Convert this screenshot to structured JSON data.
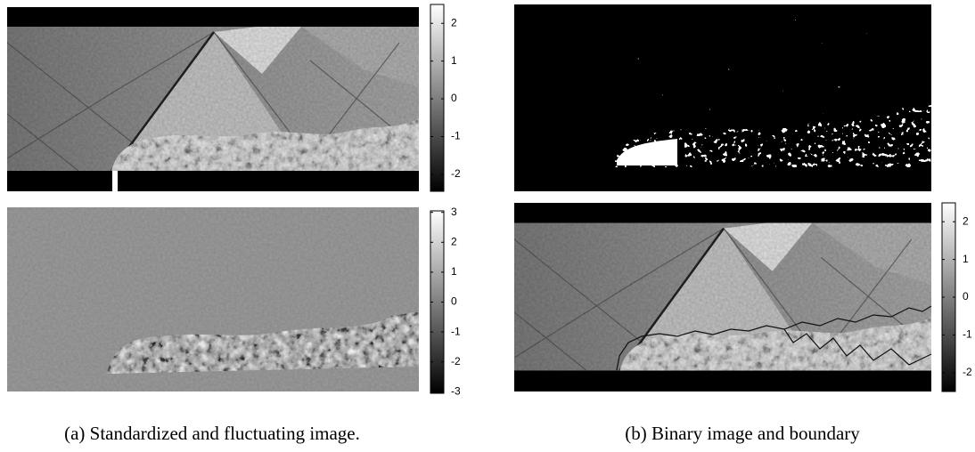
{
  "figure": {
    "colorbars": [
      {
        "lim": [
          -2.45,
          2.5
        ],
        "ticks": [
          2,
          1,
          0,
          -1,
          -2
        ]
      },
      {
        "lim": [
          -3.05,
          3.05
        ],
        "ticks": [
          3,
          2,
          1,
          0,
          -1,
          -2,
          -3
        ]
      },
      {
        "lim": [
          -2.5,
          2.5
        ],
        "ticks": [
          2,
          1,
          0,
          -1,
          -2
        ]
      }
    ],
    "captions": [
      "(a) Standardized and fluctuating image.",
      "(b) Binary image and boundary"
    ]
  }
}
